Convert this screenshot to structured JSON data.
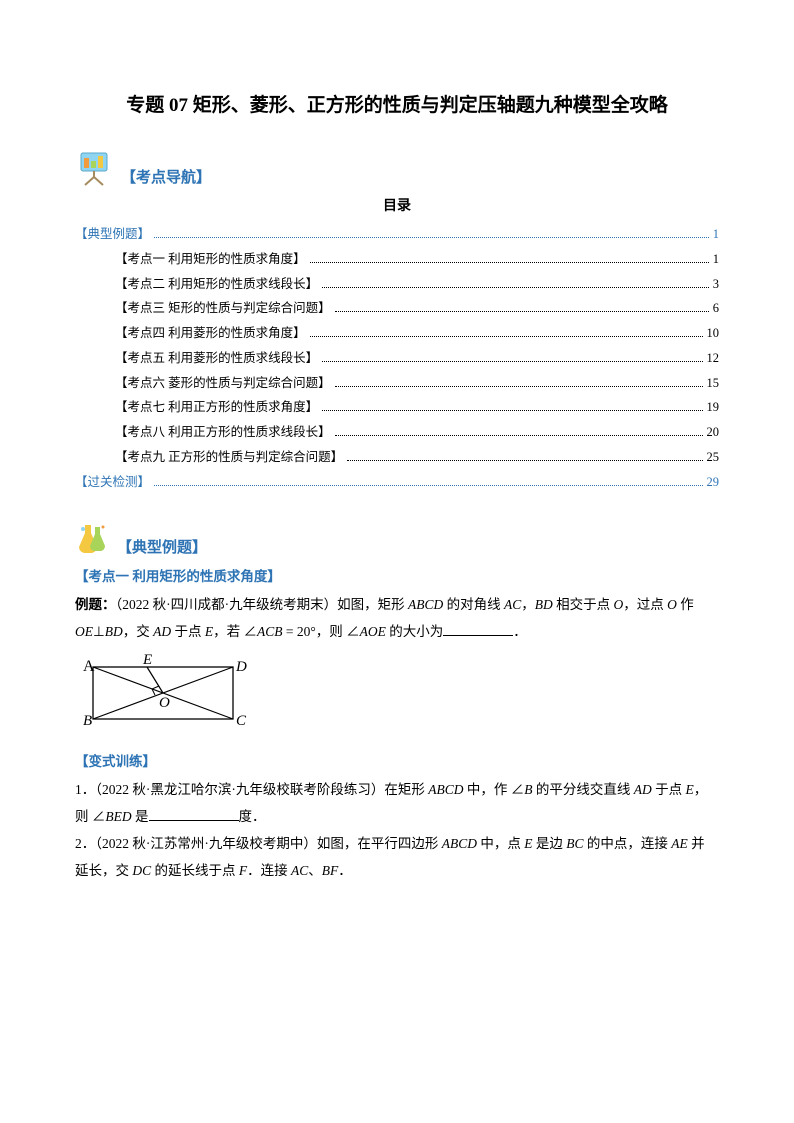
{
  "title": "专题 07 矩形、菱形、正方形的性质与判定压轴题九种模型全攻略",
  "nav_label": "【考点导航】",
  "toc_header": "目录",
  "toc_top": {
    "label": "【典型例题】",
    "page": "1"
  },
  "toc_items": [
    {
      "label": "【考点一 利用矩形的性质求角度】",
      "page": "1"
    },
    {
      "label": "【考点二 利用矩形的性质求线段长】",
      "page": "3"
    },
    {
      "label": "【考点三 矩形的性质与判定综合问题】",
      "page": "6"
    },
    {
      "label": "【考点四 利用菱形的性质求角度】",
      "page": "10"
    },
    {
      "label": "【考点五 利用菱形的性质求线段长】",
      "page": "12"
    },
    {
      "label": "【考点六 菱形的性质与判定综合问题】",
      "page": "15"
    },
    {
      "label": "【考点七 利用正方形的性质求角度】",
      "page": "19"
    },
    {
      "label": "【考点八 利用正方形的性质求线段长】",
      "page": "20"
    },
    {
      "label": "【考点九 正方形的性质与判定综合问题】",
      "page": "25"
    }
  ],
  "toc_bottom": {
    "label": "【过关检测】",
    "page": "29"
  },
  "examples_label": "【典型例题】",
  "topic1_heading": "【考点一 利用矩形的性质求角度】",
  "example_prefix": "例题：",
  "example_source": "（2022 秋·四川成都·九年级统考期末）如图，矩形 ",
  "example_body1": " 的对角线 ",
  "example_body2": "，",
  "example_body3": " 相交于点 ",
  "example_body4": "，过点 ",
  "example_body5": " 作",
  "example_line2a": "⊥",
  "example_line2b": "，交 ",
  "example_line2c": " 于点 ",
  "example_line2d": "，若 ∠",
  "example_line2e": " = 20°，则 ∠",
  "example_line2f": " 的大小为",
  "example_period": "．",
  "figure": {
    "width": 180,
    "height": 80,
    "labels": {
      "A": "A",
      "B": "B",
      "C": "C",
      "D": "D",
      "E": "E",
      "O": "O"
    },
    "stroke": "#000000",
    "label_font": "italic 15px 'Times New Roman', serif"
  },
  "variant_label": "【变式训练】",
  "q1_prefix": "1．（2022 秋·黑龙江哈尔滨·九年级校联考阶段练习）在矩形 ",
  "q1_body1": " 中，作 ∠",
  "q1_body2": " 的平分线交直线 ",
  "q1_body3": " 于点 ",
  "q1_body4": "，",
  "q1_line2a": "则 ∠",
  "q1_line2b": " 是",
  "q1_line2c": "度．",
  "q2_prefix": "2．（2022 秋·江苏常州·九年级校考期中）如图，在平行四边形 ",
  "q2_body1": " 中，点 ",
  "q2_body2": " 是边 ",
  "q2_body3": " 的中点，连接 ",
  "q2_body4": " 并",
  "q2_line2a": "延长，交 ",
  "q2_line2b": " 的延长线于点 ",
  "q2_line2c": "．连接 ",
  "q2_line2d": "、",
  "q2_line2e": "．",
  "math": {
    "ABCD": "ABCD",
    "AC": "AC",
    "BD": "BD",
    "O": "O",
    "OE": "OE",
    "AD": "AD",
    "E": "E",
    "ACB": "ACB",
    "AOE": "AOE",
    "B": "B",
    "BED": "BED",
    "BC": "BC",
    "AE": "AE",
    "DC": "DC",
    "F": "F",
    "BF": "BF"
  },
  "colors": {
    "accent": "#2e74b5",
    "icon_blue": "#8fd4f0",
    "icon_yellow": "#f5c842",
    "icon_green": "#a8d45a",
    "icon_orange": "#f29b3e"
  }
}
